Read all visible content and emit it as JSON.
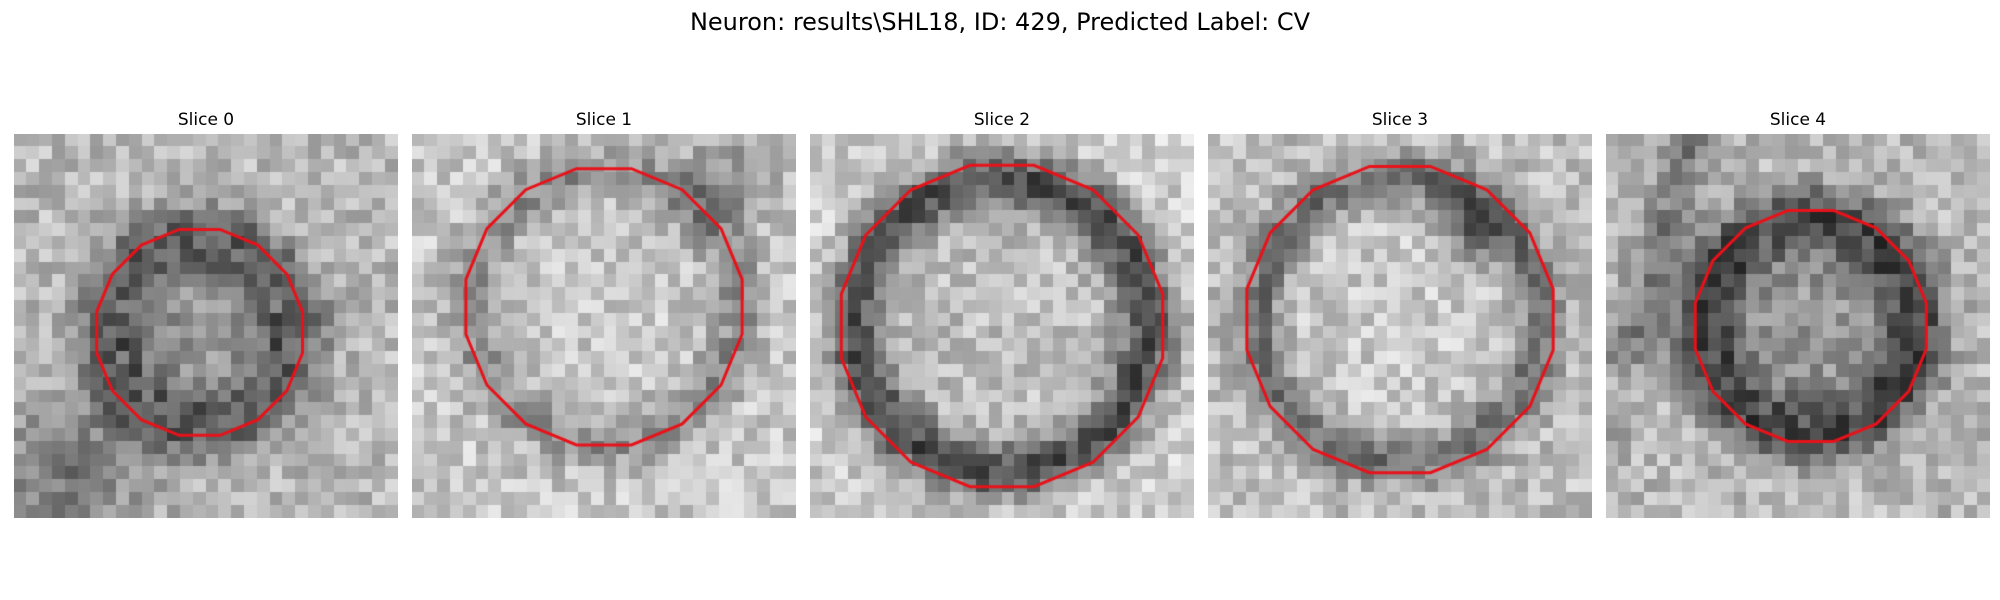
{
  "figure": {
    "title": "Neuron: results\\SHL18, ID: 429, Predicted Label: CV"
  },
  "colors": {
    "contour": "#e8121a",
    "background": "#ffffff"
  },
  "panels": [
    {
      "title": "Slice 0",
      "image": "grayscale microscopy patch of a ring-shaped neuron with red contour outline"
    },
    {
      "title": "Slice 1",
      "image": "grayscale microscopy patch of a ring-shaped neuron with red contour outline"
    },
    {
      "title": "Slice 2",
      "image": "grayscale microscopy patch of a ring-shaped neuron with red contour outline"
    },
    {
      "title": "Slice 3",
      "image": "grayscale microscopy patch of a ring-shaped neuron with red contour outline"
    },
    {
      "title": "Slice 4",
      "image": "grayscale microscopy patch of a ring-shaped neuron with red contour outline"
    }
  ]
}
